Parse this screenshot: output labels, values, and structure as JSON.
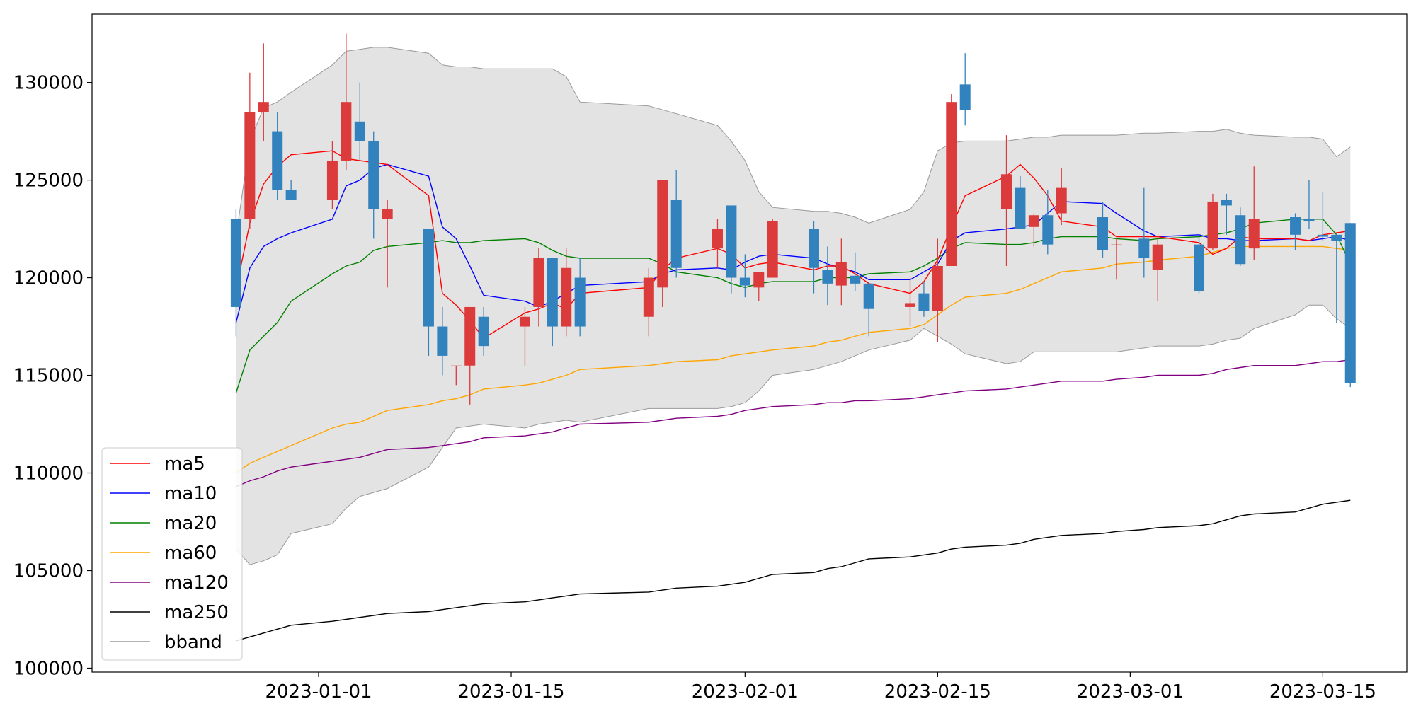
{
  "chart_data": {
    "type": "candlestick",
    "x_ticks": [
      "2023-01-01",
      "2023-01-15",
      "2023-02-01",
      "2023-02-15",
      "2023-03-01",
      "2023-03-15"
    ],
    "y_ticks": [
      "100000",
      "105000",
      "110000",
      "115000",
      "120000",
      "125000",
      "130000"
    ],
    "ylim": [
      99800,
      133500
    ],
    "grid": false,
    "legend_position": "lower-left",
    "legend": [
      {
        "label": "ma5",
        "color": "#ff0000"
      },
      {
        "label": "ma10",
        "color": "#0000ff"
      },
      {
        "label": "ma20",
        "color": "#008000"
      },
      {
        "label": "ma60",
        "color": "#ffa500"
      },
      {
        "label": "ma120",
        "color": "#800080"
      },
      {
        "label": "ma250",
        "color": "#000000"
      },
      {
        "label": "bband",
        "color": "#999999"
      }
    ],
    "colors": {
      "up": "#dc3b3b",
      "down": "#3282be",
      "bband_fill": "#e3e3e3",
      "bband_edge": "#999999"
    },
    "dates": [
      "2022-12-26",
      "2022-12-27",
      "2022-12-28",
      "2022-12-29",
      "2022-12-30",
      "2023-01-02",
      "2023-01-03",
      "2023-01-04",
      "2023-01-05",
      "2023-01-06",
      "2023-01-09",
      "2023-01-10",
      "2023-01-11",
      "2023-01-12",
      "2023-01-13",
      "2023-01-16",
      "2023-01-17",
      "2023-01-18",
      "2023-01-19",
      "2023-01-20",
      "2023-01-25",
      "2023-01-26",
      "2023-01-27",
      "2023-01-30",
      "2023-01-31",
      "2023-02-01",
      "2023-02-02",
      "2023-02-03",
      "2023-02-06",
      "2023-02-07",
      "2023-02-08",
      "2023-02-09",
      "2023-02-10",
      "2023-02-13",
      "2023-02-14",
      "2023-02-15",
      "2023-02-16",
      "2023-02-17",
      "2023-02-20",
      "2023-02-21",
      "2023-02-22",
      "2023-02-23",
      "2023-02-24",
      "2023-02-27",
      "2023-02-28",
      "2023-03-02",
      "2023-03-03",
      "2023-03-06",
      "2023-03-07",
      "2023-03-08",
      "2023-03-09",
      "2023-03-10",
      "2023-03-13",
      "2023-03-14",
      "2023-03-15",
      "2023-03-16",
      "2023-03-17"
    ],
    "ohlc": [
      [
        123000,
        123500,
        117000,
        118500
      ],
      [
        123000,
        130500,
        122500,
        128500
      ],
      [
        128500,
        132000,
        127000,
        129000
      ],
      [
        127500,
        128500,
        124000,
        124500
      ],
      [
        124500,
        125000,
        124000,
        124000
      ],
      [
        124000,
        127000,
        123500,
        126000
      ],
      [
        126000,
        132500,
        125500,
        129000
      ],
      [
        128000,
        130000,
        126000,
        127000
      ],
      [
        127000,
        127500,
        122000,
        123500
      ],
      [
        123000,
        124000,
        119500,
        123500
      ],
      [
        122500,
        122500,
        116000,
        117500
      ],
      [
        117500,
        118500,
        115000,
        116000
      ],
      [
        115500,
        115500,
        114500,
        115500
      ],
      [
        115500,
        118500,
        113500,
        118500
      ],
      [
        118000,
        118500,
        116000,
        116500
      ],
      [
        117500,
        118500,
        115500,
        118000
      ],
      [
        118500,
        121500,
        117500,
        121000
      ],
      [
        121000,
        121000,
        116500,
        117500
      ],
      [
        117500,
        121500,
        117000,
        120500
      ],
      [
        120000,
        121000,
        117000,
        117500
      ],
      [
        118000,
        120500,
        117000,
        120000
      ],
      [
        119500,
        125000,
        118500,
        125000
      ],
      [
        124000,
        125500,
        120000,
        120500
      ],
      [
        121500,
        123000,
        120500,
        122500
      ],
      [
        123700,
        123700,
        119200,
        120000
      ],
      [
        120000,
        121200,
        119000,
        119600
      ],
      [
        119500,
        120300,
        118800,
        120300
      ],
      [
        120000,
        123000,
        120000,
        122900
      ],
      [
        122500,
        122900,
        119200,
        120500
      ],
      [
        120400,
        121600,
        118600,
        119700
      ],
      [
        119600,
        122000,
        118600,
        120800
      ],
      [
        120100,
        121300,
        119300,
        119700
      ],
      [
        119700,
        119800,
        117000,
        118400
      ],
      [
        118500,
        120000,
        117500,
        118700
      ],
      [
        119200,
        119800,
        118000,
        118300
      ],
      [
        118300,
        122000,
        116700,
        120600
      ],
      [
        120600,
        129400,
        120600,
        129000
      ],
      [
        129900,
        131500,
        127800,
        128600
      ],
      [
        123500,
        127300,
        120600,
        125300
      ],
      [
        124600,
        125200,
        122500,
        122500
      ],
      [
        122600,
        123300,
        121600,
        123200
      ],
      [
        123200,
        124500,
        121200,
        121700
      ],
      [
        123300,
        125600,
        122700,
        124600
      ],
      [
        123100,
        123900,
        121000,
        121400
      ],
      [
        121700,
        122000,
        119900,
        121700
      ],
      [
        122000,
        124600,
        120000,
        121000
      ],
      [
        120400,
        122000,
        118800,
        121700
      ],
      [
        121700,
        122100,
        119200,
        119300
      ],
      [
        121500,
        124300,
        121400,
        123900
      ],
      [
        124000,
        124300,
        122200,
        123700
      ],
      [
        123200,
        123600,
        120600,
        120700
      ],
      [
        121500,
        125700,
        120900,
        123000
      ],
      [
        123100,
        123300,
        121400,
        122200
      ],
      [
        123000,
        125000,
        122500,
        122900
      ],
      [
        122200,
        124400,
        121900,
        122100
      ],
      [
        122200,
        122300,
        117700,
        121900
      ],
      [
        122800,
        122800,
        114400,
        114600
      ]
    ],
    "ma5": [
      119400,
      122800,
      124800,
      125700,
      126300,
      126500,
      126100,
      126000,
      125900,
      125800,
      124200,
      119200,
      118600,
      117800,
      116900,
      118200,
      118400,
      118700,
      118400,
      119200,
      119500,
      120400,
      121000,
      121500,
      121200,
      120500,
      120700,
      120800,
      120400,
      120600,
      120600,
      120200,
      119700,
      119200,
      119800,
      120900,
      122600,
      124200,
      125200,
      125800,
      125100,
      124200,
      122900,
      122600,
      122100,
      122100,
      122100,
      121800,
      121200,
      121500,
      122100,
      122000,
      122000,
      121900,
      122200,
      122300,
      122400
    ],
    "ma10": [
      117700,
      120500,
      121600,
      122000,
      122300,
      123000,
      124700,
      125000,
      125600,
      125800,
      125200,
      122600,
      122000,
      120600,
      119100,
      118800,
      118500,
      118800,
      119200,
      119600,
      119800,
      120200,
      120400,
      120500,
      120400,
      120800,
      121100,
      121200,
      121000,
      120700,
      120500,
      120300,
      119900,
      119900,
      120300,
      120700,
      121900,
      122300,
      122500,
      122600,
      122700,
      123300,
      123900,
      123800,
      123300,
      122400,
      122100,
      122200,
      122000,
      122000,
      121900,
      121900,
      122000,
      121900,
      122000,
      122100,
      121900
    ],
    "ma20": [
      114100,
      116300,
      117000,
      117700,
      118800,
      120200,
      120600,
      120800,
      121400,
      121600,
      121800,
      121900,
      121800,
      121800,
      121900,
      122000,
      121800,
      121400,
      121100,
      121000,
      121000,
      120700,
      120300,
      120000,
      119700,
      119500,
      119700,
      119800,
      119800,
      120000,
      120000,
      120000,
      120200,
      120300,
      120600,
      121000,
      121500,
      121800,
      121700,
      121700,
      121800,
      122000,
      122100,
      122100,
      122000,
      121900,
      122000,
      122100,
      122200,
      122300,
      122500,
      122800,
      123000,
      123000,
      123000,
      122200,
      120700
    ],
    "ma60": [
      110000,
      110500,
      110800,
      111100,
      111400,
      112300,
      112500,
      112600,
      112900,
      113200,
      113500,
      113700,
      113800,
      114000,
      114300,
      114500,
      114600,
      114800,
      115000,
      115300,
      115500,
      115600,
      115700,
      115800,
      116000,
      116100,
      116200,
      116300,
      116500,
      116700,
      116800,
      117000,
      117200,
      117400,
      117600,
      118100,
      118600,
      119000,
      119200,
      119400,
      119700,
      120000,
      120300,
      120500,
      120700,
      120800,
      120900,
      121100,
      121300,
      121500,
      121600,
      121600,
      121600,
      121600,
      121600,
      121500,
      121400
    ],
    "ma120": [
      109300,
      109600,
      109800,
      110100,
      110300,
      110600,
      110700,
      110800,
      111000,
      111200,
      111300,
      111400,
      111500,
      111600,
      111800,
      111900,
      112000,
      112100,
      112300,
      112500,
      112600,
      112700,
      112800,
      112900,
      113000,
      113200,
      113300,
      113400,
      113500,
      113600,
      113600,
      113700,
      113700,
      113800,
      113900,
      114000,
      114100,
      114200,
      114300,
      114400,
      114500,
      114600,
      114700,
      114700,
      114800,
      114900,
      115000,
      115000,
      115100,
      115300,
      115400,
      115500,
      115500,
      115600,
      115700,
      115700,
      115800
    ],
    "ma250": [
      101400,
      101600,
      101800,
      102000,
      102200,
      102400,
      102500,
      102600,
      102700,
      102800,
      102900,
      103000,
      103100,
      103200,
      103300,
      103400,
      103500,
      103600,
      103700,
      103800,
      103900,
      104000,
      104100,
      104200,
      104300,
      104400,
      104600,
      104800,
      104900,
      105100,
      105200,
      105400,
      105600,
      105700,
      105800,
      105900,
      106100,
      106200,
      106300,
      106400,
      106600,
      106700,
      106800,
      106900,
      107000,
      107100,
      107200,
      107300,
      107400,
      107600,
      107800,
      107900,
      108000,
      108200,
      108400,
      108500,
      108600
    ],
    "bband_upper": [
      122100,
      127000,
      128700,
      129000,
      129500,
      130900,
      131600,
      131700,
      131800,
      131800,
      131500,
      130900,
      130800,
      130800,
      130700,
      130700,
      130700,
      130700,
      130300,
      129000,
      128800,
      128600,
      128400,
      127800,
      127000,
      126000,
      124400,
      123600,
      123400,
      123400,
      123300,
      123100,
      122800,
      123500,
      124400,
      126500,
      126900,
      127000,
      127000,
      127100,
      127200,
      127200,
      127300,
      127300,
      127300,
      127400,
      127400,
      127500,
      127500,
      127600,
      127400,
      127300,
      127200,
      127200,
      127100,
      126200,
      126700
    ],
    "bband_lower": [
      106100,
      105300,
      105500,
      105800,
      106900,
      107400,
      108200,
      108800,
      109000,
      109200,
      110300,
      111300,
      112300,
      112400,
      112500,
      112300,
      112500,
      112600,
      112700,
      112600,
      113300,
      113300,
      113300,
      113300,
      113400,
      113600,
      114200,
      115000,
      115300,
      115500,
      115700,
      116000,
      116300,
      116800,
      117400,
      117000,
      116600,
      116100,
      115600,
      115700,
      116200,
      116200,
      116200,
      116200,
      116200,
      116400,
      116500,
      116500,
      116600,
      116800,
      116900,
      117400,
      118100,
      118600,
      118600,
      117900,
      117400
    ]
  }
}
